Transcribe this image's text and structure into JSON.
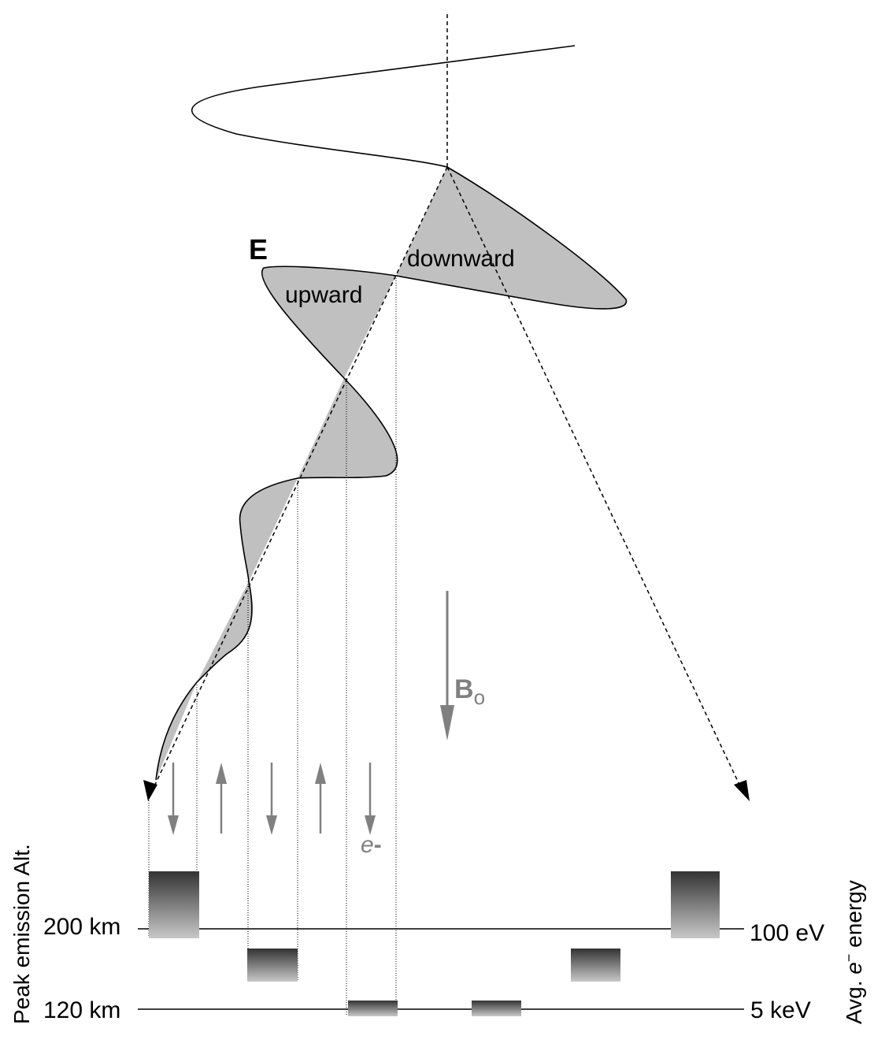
{
  "labels": {
    "e_field": "E",
    "upward": "upward",
    "downward": "downward",
    "b_field": "B",
    "b_field_subscript": "o",
    "electron": "e",
    "electron_sign": "-",
    "alt_200": "200 km",
    "alt_120": "120 km",
    "energy_100": "100 eV",
    "energy_5": "5 keV",
    "left_axis": "Peak emission Alt.",
    "right_axis_prefix": "Avg. ",
    "right_axis_e": "e",
    "right_axis_sup": "−",
    "right_axis_suffix": " energy"
  },
  "colors": {
    "wave_fill": "#c0c0c0",
    "arrow_gray": "#808080",
    "ink": "#000000",
    "block_dark": "#333333",
    "block_light": "#c8c8c8"
  },
  "icons": {
    "electron_arrow": "arrow-icon",
    "field_arrow": "arrow-icon"
  }
}
